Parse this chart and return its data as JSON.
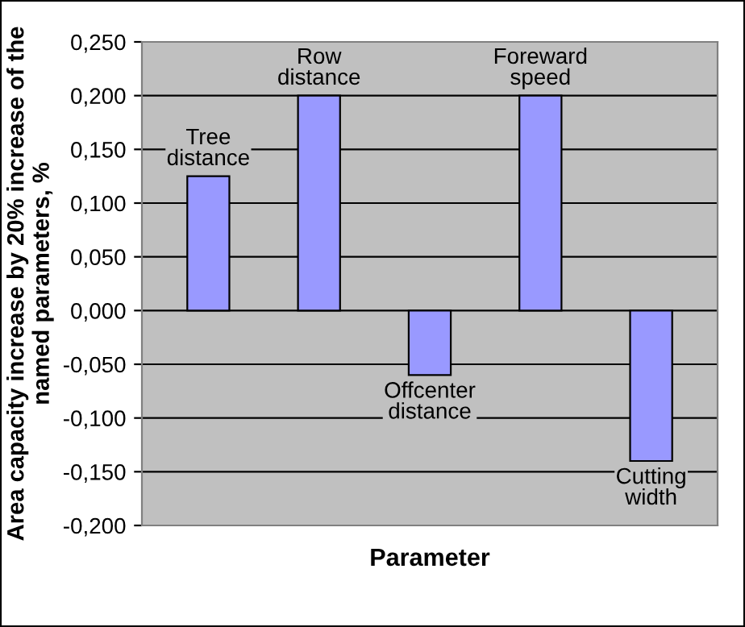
{
  "chart_data": {
    "type": "bar",
    "xlabel": "Parameter",
    "ylabel": "Area capacity increase by 20% increase of the named parameters, %",
    "categories": [
      "Tree distance",
      "Row distance",
      "Offcenter distance",
      "Foreward speed",
      "Cutting width"
    ],
    "values": [
      0.125,
      0.2,
      -0.06,
      0.2,
      -0.14
    ],
    "color": "#9999ff",
    "ylim": [
      -0.2,
      0.25
    ],
    "yticks": [
      {
        "value": -0.2,
        "label": "-0,200"
      },
      {
        "value": -0.15,
        "label": "-0,150"
      },
      {
        "value": -0.1,
        "label": "-0,100"
      },
      {
        "value": -0.05,
        "label": "-0,050"
      },
      {
        "value": 0,
        "label": "0,000"
      },
      {
        "value": 0.05,
        "label": "0,050"
      },
      {
        "value": 0.1,
        "label": "0,100"
      },
      {
        "value": 0.15,
        "label": "0,150"
      },
      {
        "value": 0.2,
        "label": "0,200"
      },
      {
        "value": 0.25,
        "label": "0,250"
      }
    ],
    "grid": "y",
    "tick_labels": "y"
  }
}
